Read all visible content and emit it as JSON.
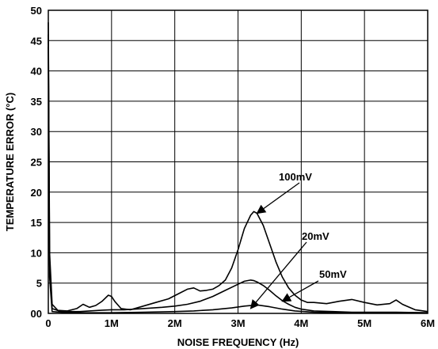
{
  "chart_data": {
    "type": "line",
    "title": "",
    "xlabel": "NOISE FREQUENCY (Hz)",
    "ylabel": "TEMPERATURE ERROR (°C)",
    "xlim": [
      0,
      6000000
    ],
    "ylim": [
      0,
      50
    ],
    "grid": true,
    "xticks": [
      {
        "value": 0,
        "label": "0"
      },
      {
        "value": 1000000,
        "label": "1M"
      },
      {
        "value": 2000000,
        "label": "2M"
      },
      {
        "value": 3000000,
        "label": "3M"
      },
      {
        "value": 4000000,
        "label": "4M"
      },
      {
        "value": 5000000,
        "label": "5M"
      },
      {
        "value": 6000000,
        "label": "6M"
      }
    ],
    "yticks": [
      {
        "value": 0,
        "label": "00"
      },
      {
        "value": 5,
        "label": "5"
      },
      {
        "value": 10,
        "label": "10"
      },
      {
        "value": 15,
        "label": "15"
      },
      {
        "value": 20,
        "label": "20"
      },
      {
        "value": 25,
        "label": "25"
      },
      {
        "value": 30,
        "label": "30"
      },
      {
        "value": 35,
        "label": "35"
      },
      {
        "value": 40,
        "label": "40"
      },
      {
        "value": 45,
        "label": "45"
      },
      {
        "value": 50,
        "label": "50"
      }
    ],
    "series": [
      {
        "name": "100mV",
        "x": [
          0,
          20000,
          60000,
          150000,
          300000,
          450000,
          550000,
          650000,
          750000,
          850000,
          950000,
          1000000,
          1050000,
          1150000,
          1300000,
          1500000,
          1700000,
          1900000,
          2050000,
          2200000,
          2300000,
          2400000,
          2500000,
          2600000,
          2700000,
          2800000,
          2900000,
          3000000,
          3100000,
          3200000,
          3250000,
          3300000,
          3400000,
          3500000,
          3600000,
          3700000,
          3800000,
          3900000,
          4000000,
          4100000,
          4200000,
          4400000,
          4600000,
          4800000,
          5000000,
          5200000,
          5400000,
          5500000,
          5600000,
          5800000,
          6000000
        ],
        "y": [
          48,
          10,
          1.5,
          0.5,
          0.4,
          0.8,
          1.5,
          1.0,
          1.3,
          2.0,
          3.0,
          2.8,
          2.0,
          0.8,
          0.6,
          1.2,
          1.8,
          2.4,
          3.2,
          4.0,
          4.2,
          3.7,
          3.8,
          4.0,
          4.6,
          5.5,
          7.5,
          10.5,
          14.0,
          16.2,
          16.8,
          16.5,
          14.5,
          11.5,
          8.5,
          6.0,
          4.2,
          3.0,
          2.2,
          1.8,
          1.8,
          1.6,
          2.0,
          2.3,
          1.8,
          1.4,
          1.6,
          2.2,
          1.5,
          0.6,
          0.3
        ]
      },
      {
        "name": "20mV",
        "x": [
          0,
          20000,
          60000,
          200000,
          500000,
          800000,
          1000000,
          1200000,
          1500000,
          1800000,
          2000000,
          2200000,
          2400000,
          2600000,
          2800000,
          3000000,
          3100000,
          3200000,
          3250000,
          3300000,
          3400000,
          3500000,
          3600000,
          3700000,
          3800000,
          3900000,
          4000000,
          4200000,
          4500000,
          4800000,
          5000000,
          5500000,
          6000000
        ],
        "y": [
          46,
          8,
          0.8,
          0.3,
          0.3,
          0.5,
          0.6,
          0.6,
          0.8,
          1.0,
          1.2,
          1.5,
          2.0,
          2.8,
          3.8,
          4.8,
          5.3,
          5.5,
          5.4,
          5.2,
          4.6,
          3.8,
          2.9,
          2.1,
          1.5,
          1.0,
          0.7,
          0.4,
          0.3,
          0.2,
          0.2,
          0.2,
          0.1
        ]
      },
      {
        "name": "50mV",
        "x": [
          0,
          20000,
          60000,
          300000,
          700000,
          1000000,
          1500000,
          2000000,
          2300000,
          2600000,
          2900000,
          3100000,
          3300000,
          3500000,
          3700000,
          3900000,
          4200000,
          4600000,
          5000000,
          5500000,
          6000000
        ],
        "y": [
          44,
          6,
          0.3,
          0.1,
          0.1,
          0.1,
          0.2,
          0.3,
          0.4,
          0.6,
          0.9,
          1.2,
          1.4,
          1.1,
          0.7,
          0.4,
          0.2,
          0.1,
          0.1,
          0.1,
          0.1
        ]
      }
    ],
    "annotations": [
      {
        "text": "100mV",
        "points_to": [
          3300000,
          16.5
        ]
      },
      {
        "text": "20mV",
        "points_to": [
          3200000,
          0.8
        ]
      },
      {
        "text": "50mV",
        "points_to": [
          3700000,
          2.0
        ]
      }
    ]
  }
}
